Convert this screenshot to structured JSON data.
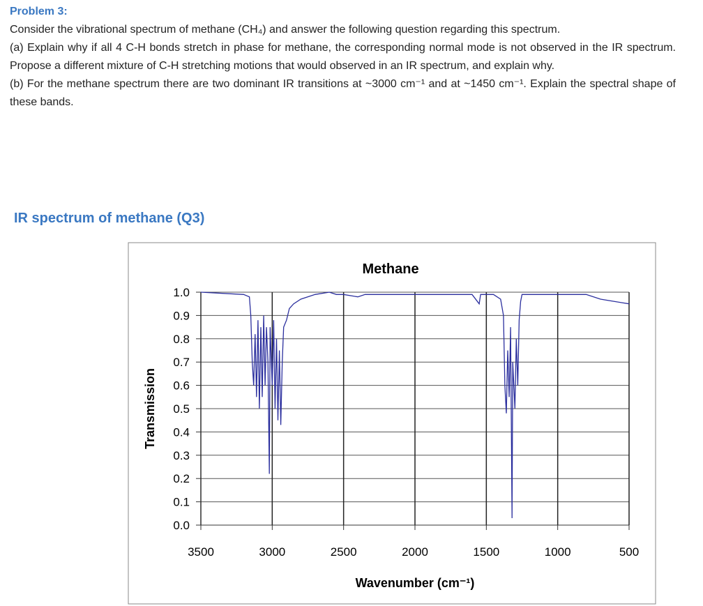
{
  "problem": {
    "title": "Problem 3:",
    "paragraphs": [
      "Consider the vibrational spectrum of methane (CH₄) and answer the following question regarding this spectrum.",
      "(a) Explain why if all 4 C-H bonds stretch in phase for methane, the corresponding normal mode is not observed in the IR spectrum. Propose a different mixture of C-H stretching motions that would observed in an IR spectrum, and explain why.",
      "(b) For the methane spectrum there are two dominant IR transitions at ~3000 cm⁻¹ and at ~1450 cm⁻¹. Explain the spectral shape of these bands."
    ]
  },
  "figure_heading": "IR spectrum of methane (Q3)",
  "chart_data": {
    "type": "line",
    "title": "Methane",
    "x_label": "Wavenumber (cm⁻¹)",
    "y_label": "Transmission",
    "color": "#2b2f9e",
    "grid": true,
    "xlim": [
      3500,
      500
    ],
    "ylim": [
      0,
      1
    ],
    "xticks": [
      3500,
      3000,
      2500,
      2000,
      1500,
      1000,
      500
    ],
    "yticks": [
      {
        "value": 0,
        "label": "0.0"
      },
      0.1,
      0.2,
      0.3,
      0.4,
      0.5,
      0.6,
      0.7,
      0.8,
      0.9,
      {
        "value": 1,
        "label": "1.0"
      }
    ],
    "x": [
      3500,
      3200,
      3160,
      3150,
      3140,
      3130,
      3120,
      3110,
      3100,
      3090,
      3080,
      3070,
      3060,
      3050,
      3040,
      3030,
      3020,
      3015,
      3000,
      2990,
      2980,
      2970,
      2960,
      2950,
      2940,
      2930,
      2920,
      2900,
      2880,
      2850,
      2800,
      2700,
      2600,
      2550,
      2500,
      2400,
      2350,
      2000,
      1600,
      1550,
      1540,
      1450,
      1400,
      1380,
      1370,
      1360,
      1350,
      1340,
      1330,
      1320,
      1315,
      1300,
      1290,
      1280,
      1270,
      1260,
      1250,
      1000,
      800,
      700,
      600,
      500
    ],
    "values": [
      1.0,
      0.99,
      0.98,
      0.9,
      0.7,
      0.6,
      0.82,
      0.55,
      0.88,
      0.5,
      0.85,
      0.55,
      0.9,
      0.6,
      0.85,
      0.7,
      0.22,
      0.85,
      0.6,
      0.88,
      0.5,
      0.8,
      0.45,
      0.75,
      0.43,
      0.7,
      0.85,
      0.88,
      0.93,
      0.95,
      0.97,
      0.99,
      1.0,
      0.99,
      0.99,
      0.98,
      0.99,
      0.99,
      0.99,
      0.95,
      0.99,
      0.99,
      0.97,
      0.9,
      0.6,
      0.48,
      0.75,
      0.55,
      0.85,
      0.03,
      0.7,
      0.5,
      0.8,
      0.6,
      0.88,
      0.96,
      0.99,
      0.99,
      0.99,
      0.97,
      0.96,
      0.95
    ]
  }
}
